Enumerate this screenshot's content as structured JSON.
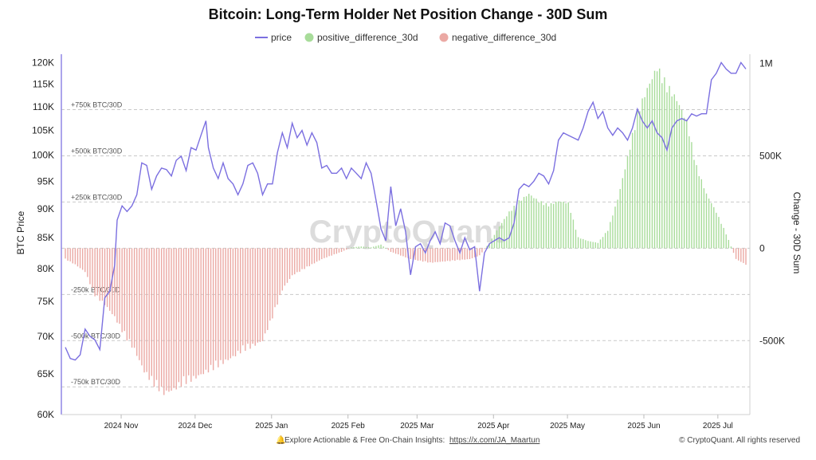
{
  "chart_data": {
    "type": "bar",
    "title": "Bitcoin: Long-Term Holder Net Position Change - 30D Sum",
    "legend": {
      "placement": "top-center",
      "items": [
        {
          "name": "price",
          "color": "#7B6FE0",
          "kind": "line"
        },
        {
          "name": "positive_difference_30d",
          "color": "#A8DC9A",
          "kind": "dot"
        },
        {
          "name": "negative_difference_30d",
          "color": "#EBA9A4",
          "kind": "dot"
        }
      ]
    },
    "ylabel_left": "BTC Price",
    "ylabel_right": "Change - 30D Sum",
    "left_axis": {
      "scale": "log",
      "ylim": [
        60000,
        122000
      ],
      "ticks": [
        60000,
        65000,
        70000,
        75000,
        80000,
        85000,
        90000,
        95000,
        100000,
        105000,
        110000,
        115000,
        120000
      ],
      "tick_labels": [
        "60K",
        "65K",
        "70K",
        "75K",
        "80K",
        "85K",
        "90K",
        "95K",
        "100K",
        "105K",
        "110K",
        "115K",
        "120K"
      ]
    },
    "right_axis": {
      "ylim": [
        -900000,
        1050000
      ],
      "ticks": [
        -500000,
        0,
        500000,
        1000000
      ],
      "tick_labels": [
        "-500K",
        "0",
        "500K",
        "1M"
      ]
    },
    "reference_lines": [
      {
        "value": 750000,
        "label": "+750k BTC/30D"
      },
      {
        "value": 500000,
        "label": "+500k BTC/30D"
      },
      {
        "value": 250000,
        "label": "+250k BTC/30D"
      },
      {
        "value": -250000,
        "label": "-250k BTC/30D"
      },
      {
        "value": -500000,
        "label": "-500k BTC/30D"
      },
      {
        "value": -750000,
        "label": "-750k BTC/30D"
      }
    ],
    "x_range": [
      "2024-10-21",
      "2025-07-24"
    ],
    "x_ticks": [
      {
        "date": "2024-11-01",
        "label": "2024 Nov"
      },
      {
        "date": "2024-12-01",
        "label": "2024 Dec"
      },
      {
        "date": "2025-01-01",
        "label": "2025 Jan"
      },
      {
        "date": "2025-02-01",
        "label": "2025 Feb"
      },
      {
        "date": "2025-03-01",
        "label": "2025 Mar"
      },
      {
        "date": "2025-04-01",
        "label": "2025 Apr"
      },
      {
        "date": "2025-05-01",
        "label": "2025 May"
      },
      {
        "date": "2025-06-01",
        "label": "2025 Jun"
      },
      {
        "date": "2025-07-01",
        "label": "2025 Jul"
      }
    ],
    "price": [
      [
        "2024-10-21",
        68500
      ],
      [
        "2024-10-23",
        67000
      ],
      [
        "2024-10-25",
        66800
      ],
      [
        "2024-10-27",
        67500
      ],
      [
        "2024-10-29",
        71000
      ],
      [
        "2024-10-31",
        70000
      ],
      [
        "2024-11-02",
        69500
      ],
      [
        "2024-11-04",
        68200
      ],
      [
        "2024-11-06",
        75500
      ],
      [
        "2024-11-08",
        76500
      ],
      [
        "2024-11-10",
        80500
      ],
      [
        "2024-11-11",
        88000
      ],
      [
        "2024-11-13",
        90500
      ],
      [
        "2024-11-15",
        89500
      ],
      [
        "2024-11-17",
        90500
      ],
      [
        "2024-11-19",
        92500
      ],
      [
        "2024-11-21",
        98500
      ],
      [
        "2024-11-23",
        98000
      ],
      [
        "2024-11-25",
        93500
      ],
      [
        "2024-11-27",
        96000
      ],
      [
        "2024-11-29",
        97500
      ],
      [
        "2024-12-01",
        97200
      ],
      [
        "2024-12-03",
        96000
      ],
      [
        "2024-12-05",
        99000
      ],
      [
        "2024-12-07",
        99800
      ],
      [
        "2024-12-09",
        97000
      ],
      [
        "2024-12-11",
        101500
      ],
      [
        "2024-12-13",
        101000
      ],
      [
        "2024-12-15",
        104000
      ],
      [
        "2024-12-17",
        107000
      ],
      [
        "2024-12-18",
        101500
      ],
      [
        "2024-12-20",
        97500
      ],
      [
        "2024-12-22",
        95500
      ],
      [
        "2024-12-24",
        98500
      ],
      [
        "2024-12-26",
        95500
      ],
      [
        "2024-12-28",
        94500
      ],
      [
        "2024-12-30",
        92500
      ],
      [
        "2025-01-01",
        94500
      ],
      [
        "2025-01-03",
        98000
      ],
      [
        "2025-01-05",
        98500
      ],
      [
        "2025-01-07",
        96500
      ],
      [
        "2025-01-09",
        92500
      ],
      [
        "2025-01-11",
        94500
      ],
      [
        "2025-01-13",
        94500
      ],
      [
        "2025-01-15",
        100500
      ],
      [
        "2025-01-17",
        104500
      ],
      [
        "2025-01-19",
        101500
      ],
      [
        "2025-01-21",
        106500
      ],
      [
        "2025-01-23",
        103500
      ],
      [
        "2025-01-25",
        105000
      ],
      [
        "2025-01-27",
        102000
      ],
      [
        "2025-01-29",
        104500
      ],
      [
        "2025-01-31",
        102500
      ],
      [
        "2025-02-02",
        97500
      ],
      [
        "2025-02-04",
        98000
      ],
      [
        "2025-02-06",
        96500
      ],
      [
        "2025-02-08",
        96500
      ],
      [
        "2025-02-10",
        97500
      ],
      [
        "2025-02-12",
        95500
      ],
      [
        "2025-02-14",
        97500
      ],
      [
        "2025-02-16",
        96500
      ],
      [
        "2025-02-18",
        95500
      ],
      [
        "2025-02-20",
        98500
      ],
      [
        "2025-02-22",
        96500
      ],
      [
        "2025-02-24",
        91500
      ],
      [
        "2025-02-26",
        86500
      ],
      [
        "2025-02-28",
        84500
      ],
      [
        "2025-03-02",
        94000
      ],
      [
        "2025-03-04",
        87000
      ],
      [
        "2025-03-06",
        90000
      ],
      [
        "2025-03-08",
        86000
      ],
      [
        "2025-03-10",
        79000
      ],
      [
        "2025-03-12",
        83500
      ],
      [
        "2025-03-14",
        84000
      ],
      [
        "2025-03-16",
        82500
      ],
      [
        "2025-03-18",
        84500
      ],
      [
        "2025-03-20",
        86000
      ],
      [
        "2025-03-22",
        84000
      ],
      [
        "2025-03-24",
        87500
      ],
      [
        "2025-03-26",
        87000
      ],
      [
        "2025-03-28",
        84500
      ],
      [
        "2025-03-30",
        82500
      ],
      [
        "2025-04-01",
        85000
      ],
      [
        "2025-04-03",
        83000
      ],
      [
        "2025-04-05",
        83500
      ],
      [
        "2025-04-07",
        76500
      ],
      [
        "2025-04-09",
        82500
      ],
      [
        "2025-04-11",
        84000
      ],
      [
        "2025-04-13",
        84500
      ],
      [
        "2025-04-15",
        85000
      ],
      [
        "2025-04-17",
        84500
      ],
      [
        "2025-04-19",
        85000
      ],
      [
        "2025-04-21",
        87500
      ],
      [
        "2025-04-23",
        93500
      ],
      [
        "2025-04-25",
        94500
      ],
      [
        "2025-04-27",
        94000
      ],
      [
        "2025-04-29",
        95000
      ],
      [
        "2025-05-01",
        96500
      ],
      [
        "2025-05-03",
        96000
      ],
      [
        "2025-05-05",
        94500
      ],
      [
        "2025-05-07",
        97000
      ],
      [
        "2025-05-09",
        103000
      ],
      [
        "2025-05-11",
        104500
      ],
      [
        "2025-05-13",
        104000
      ],
      [
        "2025-05-15",
        103500
      ],
      [
        "2025-05-17",
        103000
      ],
      [
        "2025-05-19",
        105500
      ],
      [
        "2025-05-21",
        109000
      ],
      [
        "2025-05-23",
        111000
      ],
      [
        "2025-05-25",
        107500
      ],
      [
        "2025-05-27",
        109000
      ],
      [
        "2025-05-29",
        105500
      ],
      [
        "2025-05-31",
        104000
      ],
      [
        "2025-06-02",
        105500
      ],
      [
        "2025-06-04",
        104500
      ],
      [
        "2025-06-06",
        103000
      ],
      [
        "2025-06-08",
        105500
      ],
      [
        "2025-06-10",
        109500
      ],
      [
        "2025-06-12",
        107000
      ],
      [
        "2025-06-14",
        105500
      ],
      [
        "2025-06-16",
        107000
      ],
      [
        "2025-06-18",
        104500
      ],
      [
        "2025-06-20",
        103500
      ],
      [
        "2025-06-22",
        101000
      ],
      [
        "2025-06-24",
        105500
      ],
      [
        "2025-06-26",
        107000
      ],
      [
        "2025-06-28",
        107500
      ],
      [
        "2025-06-30",
        107000
      ],
      [
        "2025-07-02",
        108500
      ],
      [
        "2025-07-04",
        108000
      ],
      [
        "2025-07-06",
        108500
      ],
      [
        "2025-07-08",
        108500
      ],
      [
        "2025-07-10",
        116000
      ],
      [
        "2025-07-12",
        117500
      ],
      [
        "2025-07-14",
        120000
      ],
      [
        "2025-07-16",
        118500
      ],
      [
        "2025-07-18",
        117500
      ],
      [
        "2025-07-20",
        117500
      ],
      [
        "2025-07-22",
        120000
      ],
      [
        "2025-07-24",
        118500
      ]
    ],
    "difference_30d": [
      [
        "2024-10-21",
        -60000
      ],
      [
        "2024-10-25",
        -90000
      ],
      [
        "2024-10-29",
        -130000
      ],
      [
        "2024-11-02",
        -260000
      ],
      [
        "2024-11-06",
        -310000
      ],
      [
        "2024-11-10",
        -380000
      ],
      [
        "2024-11-14",
        -480000
      ],
      [
        "2024-11-18",
        -560000
      ],
      [
        "2024-11-22",
        -680000
      ],
      [
        "2024-11-26",
        -750000
      ],
      [
        "2024-11-30",
        -800000
      ],
      [
        "2024-12-04",
        -780000
      ],
      [
        "2024-12-08",
        -740000
      ],
      [
        "2024-12-12",
        -720000
      ],
      [
        "2024-12-16",
        -690000
      ],
      [
        "2024-12-20",
        -660000
      ],
      [
        "2024-12-24",
        -630000
      ],
      [
        "2024-12-28",
        -600000
      ],
      [
        "2025-01-01",
        -560000
      ],
      [
        "2025-01-05",
        -540000
      ],
      [
        "2025-01-09",
        -510000
      ],
      [
        "2025-01-13",
        -380000
      ],
      [
        "2025-01-17",
        -230000
      ],
      [
        "2025-01-21",
        -150000
      ],
      [
        "2025-01-25",
        -120000
      ],
      [
        "2025-01-29",
        -90000
      ],
      [
        "2025-02-02",
        -60000
      ],
      [
        "2025-02-06",
        -40000
      ],
      [
        "2025-02-10",
        -20000
      ],
      [
        "2025-02-14",
        5000
      ],
      [
        "2025-02-18",
        10000
      ],
      [
        "2025-02-22",
        5000
      ],
      [
        "2025-02-26",
        20000
      ],
      [
        "2025-03-02",
        -20000
      ],
      [
        "2025-03-06",
        -40000
      ],
      [
        "2025-03-10",
        -60000
      ],
      [
        "2025-03-14",
        -70000
      ],
      [
        "2025-03-18",
        -80000
      ],
      [
        "2025-03-22",
        -75000
      ],
      [
        "2025-03-26",
        -70000
      ],
      [
        "2025-03-30",
        -65000
      ],
      [
        "2025-04-03",
        -60000
      ],
      [
        "2025-04-07",
        -40000
      ],
      [
        "2025-04-11",
        30000
      ],
      [
        "2025-04-15",
        120000
      ],
      [
        "2025-04-19",
        200000
      ],
      [
        "2025-04-23",
        260000
      ],
      [
        "2025-04-27",
        300000
      ],
      [
        "2025-05-01",
        260000
      ],
      [
        "2025-05-05",
        240000
      ],
      [
        "2025-05-09",
        260000
      ],
      [
        "2025-05-13",
        250000
      ],
      [
        "2025-05-17",
        60000
      ],
      [
        "2025-05-21",
        40000
      ],
      [
        "2025-05-25",
        30000
      ],
      [
        "2025-05-29",
        100000
      ],
      [
        "2025-06-02",
        270000
      ],
      [
        "2025-06-06",
        500000
      ],
      [
        "2025-06-10",
        750000
      ],
      [
        "2025-06-14",
        880000
      ],
      [
        "2025-06-18",
        1000000
      ],
      [
        "2025-06-22",
        900000
      ],
      [
        "2025-06-26",
        820000
      ],
      [
        "2025-06-30",
        700000
      ],
      [
        "2025-07-04",
        450000
      ],
      [
        "2025-07-08",
        300000
      ],
      [
        "2025-07-12",
        200000
      ],
      [
        "2025-07-16",
        80000
      ],
      [
        "2025-07-20",
        -60000
      ],
      [
        "2025-07-24",
        -90000
      ]
    ],
    "watermark": "CryptoQuant"
  },
  "footer": {
    "insight_text": "Explore Actionable & Free On-Chain Insights: ",
    "link_text": "https://x.com/JA_Maartun",
    "copyright": "© CryptoQuant. All rights reserved"
  }
}
